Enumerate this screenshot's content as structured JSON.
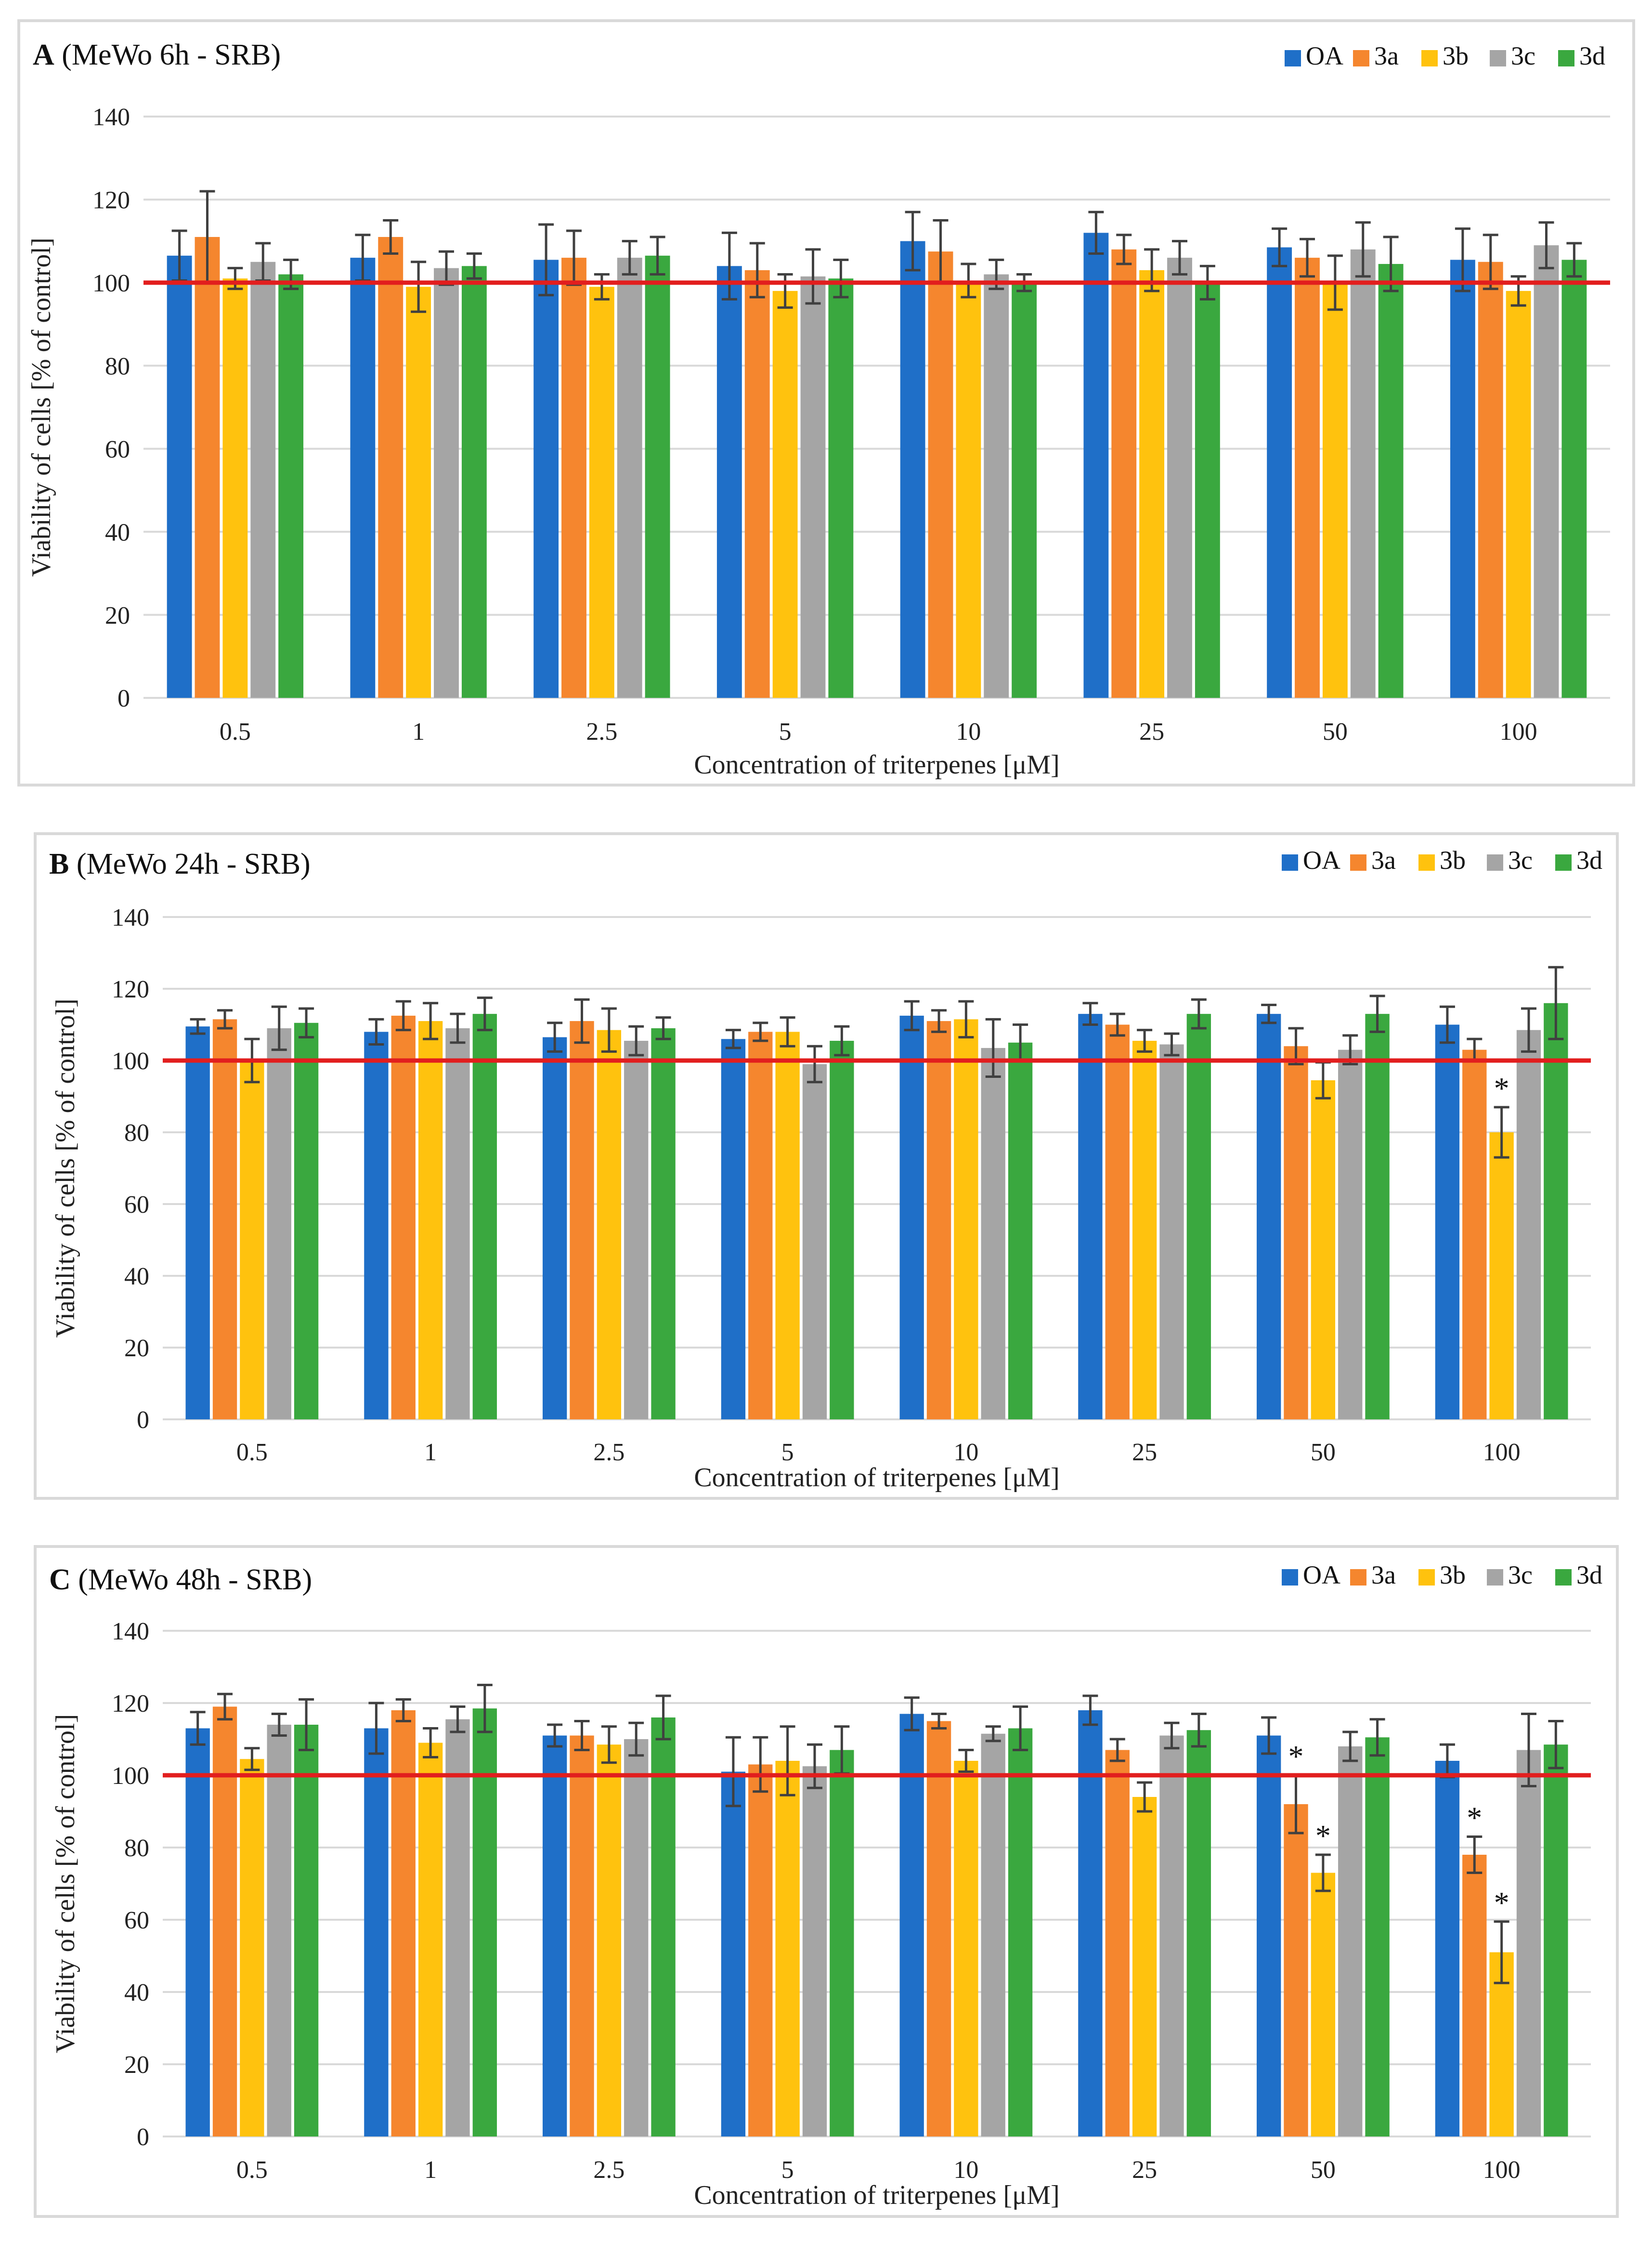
{
  "figure": {
    "colors": {
      "OA": "#1f6fc8",
      "3a": "#f5862e",
      "3b": "#ffc20e",
      "3c": "#a5a5a5",
      "3d": "#3aa83f",
      "reference": "#e21e1e",
      "error": "#404040",
      "grid": "#d9d9d9"
    }
  },
  "chart_data": [
    {
      "type": "bar",
      "title_letter": "A",
      "title_rest": " (MeWo 6h - SRB)",
      "xlabel": "Concentration of triterpenes [μM]",
      "ylabel": "Viability of cells [% of control]",
      "ylim": [
        0,
        140
      ],
      "yticks": [
        "0",
        "20",
        "40",
        "60",
        "80",
        "100",
        "120",
        "140"
      ],
      "categories": [
        "0.5",
        "1",
        "2.5",
        "5",
        "10",
        "25",
        "50",
        "100"
      ],
      "reference_line": 100,
      "legend": [
        "OA",
        "3a",
        "3b",
        "3c",
        "3d"
      ],
      "series": [
        {
          "name": "OA",
          "values": [
            106.5,
            106,
            105.5,
            104,
            110,
            112,
            108.5,
            105.5
          ],
          "errors": [
            6,
            5.5,
            8.5,
            8,
            7,
            5,
            4.5,
            7.5
          ]
        },
        {
          "name": "3a",
          "values": [
            111,
            111,
            106,
            103,
            107.5,
            108,
            106,
            105
          ],
          "errors": [
            11,
            4,
            6.5,
            6.5,
            7.5,
            3.5,
            4.5,
            6.5
          ]
        },
        {
          "name": "3b",
          "values": [
            101,
            99,
            99,
            98,
            100.5,
            103,
            100,
            98
          ],
          "errors": [
            2.5,
            6,
            3,
            4,
            4,
            5,
            6.5,
            3.5
          ]
        },
        {
          "name": "3c",
          "values": [
            105,
            103.5,
            106,
            101.5,
            102,
            106,
            108,
            109
          ],
          "errors": [
            4.5,
            4,
            4,
            6.5,
            3.5,
            4,
            6.5,
            5.5
          ]
        },
        {
          "name": "3d",
          "values": [
            102,
            104,
            106.5,
            101,
            100,
            100,
            104.5,
            105.5
          ],
          "errors": [
            3.5,
            3,
            4.5,
            4.5,
            2,
            4,
            6.5,
            4
          ]
        }
      ],
      "stars": []
    },
    {
      "type": "bar",
      "title_letter": "B",
      "title_rest": " (MeWo 24h - SRB)",
      "xlabel": "Concentration of triterpenes [μM]",
      "ylabel": "Viability of cells [% of control]",
      "ylim": [
        0,
        140
      ],
      "yticks": [
        "0",
        "20",
        "40",
        "60",
        "80",
        "100",
        "120",
        "140"
      ],
      "categories": [
        "0.5",
        "1",
        "2.5",
        "5",
        "10",
        "25",
        "50",
        "100"
      ],
      "reference_line": 100,
      "legend": [
        "OA",
        "3a",
        "3b",
        "3c",
        "3d"
      ],
      "series": [
        {
          "name": "OA",
          "values": [
            109.5,
            108,
            106.5,
            106,
            112.5,
            113,
            113,
            110
          ],
          "errors": [
            2,
            3.5,
            4,
            2.5,
            4,
            3,
            2.5,
            5
          ]
        },
        {
          "name": "3a",
          "values": [
            111.5,
            112.5,
            111,
            108,
            111,
            110,
            104,
            103
          ],
          "errors": [
            2.5,
            4,
            6,
            2.5,
            3,
            3,
            5,
            3
          ]
        },
        {
          "name": "3b",
          "values": [
            100,
            111,
            108.5,
            108,
            111.5,
            105.5,
            94.5,
            80
          ],
          "errors": [
            6,
            5,
            6,
            4,
            5,
            3,
            5,
            7
          ]
        },
        {
          "name": "3c",
          "values": [
            109,
            109,
            105.5,
            99,
            103.5,
            104.5,
            103,
            108.5
          ],
          "errors": [
            6,
            4,
            4,
            5,
            8,
            3,
            4,
            6
          ]
        },
        {
          "name": "3d",
          "values": [
            110.5,
            113,
            109,
            105.5,
            105,
            113,
            113,
            116
          ],
          "errors": [
            4,
            4.5,
            3,
            4,
            5,
            4,
            5,
            10
          ]
        }
      ],
      "stars": [
        {
          "category": "100",
          "series": "3b",
          "text": "*"
        }
      ]
    },
    {
      "type": "bar",
      "title_letter": "C",
      "title_rest": " (MeWo 48h - SRB)",
      "xlabel": "Concentration of triterpenes [μM]",
      "ylabel": "Viability of cells [% of control]",
      "ylim": [
        0,
        140
      ],
      "yticks": [
        "0",
        "20",
        "40",
        "60",
        "80",
        "100",
        "120",
        "140"
      ],
      "categories": [
        "0.5",
        "1",
        "2.5",
        "5",
        "10",
        "25",
        "50",
        "100"
      ],
      "reference_line": 100,
      "legend": [
        "OA",
        "3a",
        "3b",
        "3c",
        "3d"
      ],
      "series": [
        {
          "name": "OA",
          "values": [
            113,
            113,
            111,
            101,
            117,
            118,
            111,
            104
          ],
          "errors": [
            4.5,
            7,
            3,
            9.5,
            4.5,
            4,
            5,
            4.5
          ]
        },
        {
          "name": "3a",
          "values": [
            119,
            118,
            111,
            103,
            115,
            107,
            92,
            78
          ],
          "errors": [
            3.5,
            3,
            4,
            7.5,
            2,
            3,
            8,
            5
          ]
        },
        {
          "name": "3b",
          "values": [
            104.5,
            109,
            108.5,
            104,
            104,
            94,
            73,
            51
          ],
          "errors": [
            3,
            4,
            5,
            9.5,
            3,
            4,
            5,
            8.5
          ]
        },
        {
          "name": "3c",
          "values": [
            114,
            115.5,
            110,
            102.5,
            111.5,
            111,
            108,
            107
          ],
          "errors": [
            3,
            3.5,
            4.5,
            6,
            2,
            3.5,
            4,
            10
          ]
        },
        {
          "name": "3d",
          "values": [
            114,
            118.5,
            116,
            107,
            113,
            112.5,
            110.5,
            108.5
          ],
          "errors": [
            7,
            6.5,
            6,
            6.5,
            6,
            4.5,
            5,
            6.5
          ]
        }
      ],
      "stars": [
        {
          "category": "50",
          "series": "3a",
          "text": "*"
        },
        {
          "category": "50",
          "series": "3b",
          "text": "*"
        },
        {
          "category": "100",
          "series": "3a",
          "text": "*"
        },
        {
          "category": "100",
          "series": "3b",
          "text": "*"
        }
      ]
    }
  ]
}
